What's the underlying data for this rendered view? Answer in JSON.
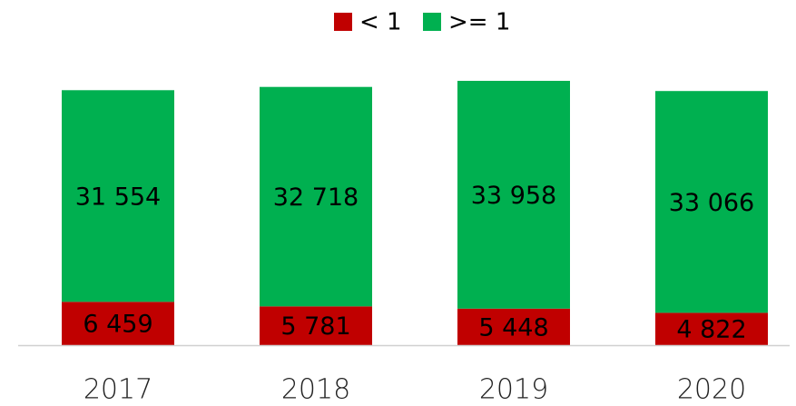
{
  "chart_data": {
    "type": "stacked_bar",
    "categories": [
      "2017",
      "2018",
      "2019",
      "2020"
    ],
    "series": [
      {
        "name": "< 1",
        "color": "#c00000",
        "values": [
          6459,
          5781,
          5448,
          4822
        ],
        "value_labels": [
          "6 459",
          "5 781",
          "5 448",
          "4 822"
        ]
      },
      {
        "name": ">= 1",
        "color": "#00b050",
        "values": [
          31554,
          32718,
          33958,
          33066
        ],
        "value_labels": [
          "31 554",
          "32 718",
          "33 958",
          "33 066"
        ]
      }
    ],
    "legend": "top"
  }
}
